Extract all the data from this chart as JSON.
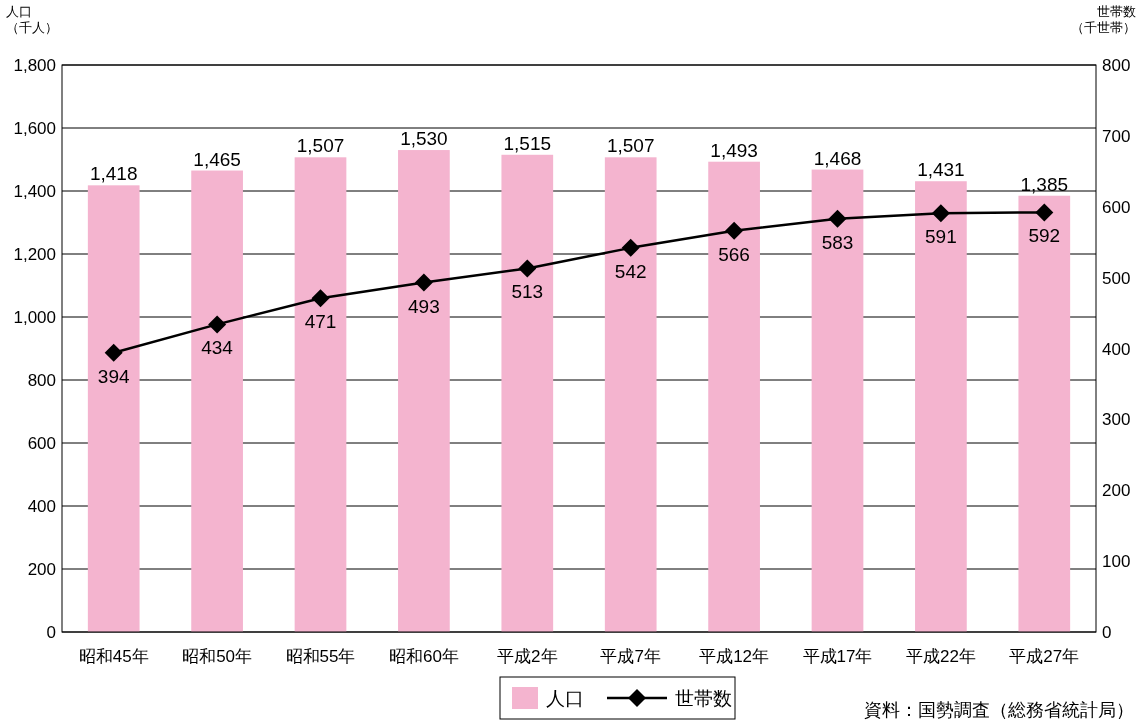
{
  "chart_data": {
    "type": "bar",
    "categories": [
      "昭和45年",
      "昭和50年",
      "昭和55年",
      "昭和60年",
      "平成2年",
      "平成7年",
      "平成12年",
      "平成17年",
      "平成22年",
      "平成27年"
    ],
    "series": [
      {
        "name": "人口",
        "color": "#f4b4cf",
        "values": [
          1418,
          1465,
          1507,
          1530,
          1515,
          1507,
          1493,
          1468,
          1431,
          1385
        ],
        "value_labels": [
          "1,418",
          "1,465",
          "1,507",
          "1,530",
          "1,515",
          "1,507",
          "1,493",
          "1,468",
          "1,431",
          "1,385"
        ]
      },
      {
        "name": "世帯数",
        "type": "line",
        "axis": "y2",
        "color": "#000000",
        "marker": "diamond",
        "values": [
          394,
          434,
          471,
          493,
          513,
          542,
          566,
          583,
          591,
          592
        ],
        "value_labels": [
          "394",
          "434",
          "471",
          "493",
          "513",
          "542",
          "566",
          "583",
          "591",
          "592"
        ]
      }
    ],
    "ylabel": "人口（千人）",
    "y2label": "世帯数（千世帯）",
    "ylim": [
      0,
      1800
    ],
    "yticks": [
      0,
      {
        "value": 200,
        "label": "200"
      },
      {
        "value": 400,
        "label": "400"
      },
      {
        "value": 600,
        "label": "600"
      },
      {
        "value": 800,
        "label": "800"
      },
      {
        "value": 1000,
        "label": "1,000"
      },
      {
        "value": 1200,
        "label": "1,200"
      },
      {
        "value": 1400,
        "label": "1,400"
      },
      {
        "value": 1600,
        "label": "1,600"
      },
      {
        "value": 1800,
        "label": "1,800"
      }
    ],
    "y2lim": [
      0,
      800
    ],
    "y2ticks": [
      0,
      100,
      200,
      300,
      400,
      500,
      600,
      700,
      800
    ],
    "grid": "y",
    "legend": "bottom",
    "annotations": [
      "資料：国勢調査（総務省統計局）"
    ]
  }
}
